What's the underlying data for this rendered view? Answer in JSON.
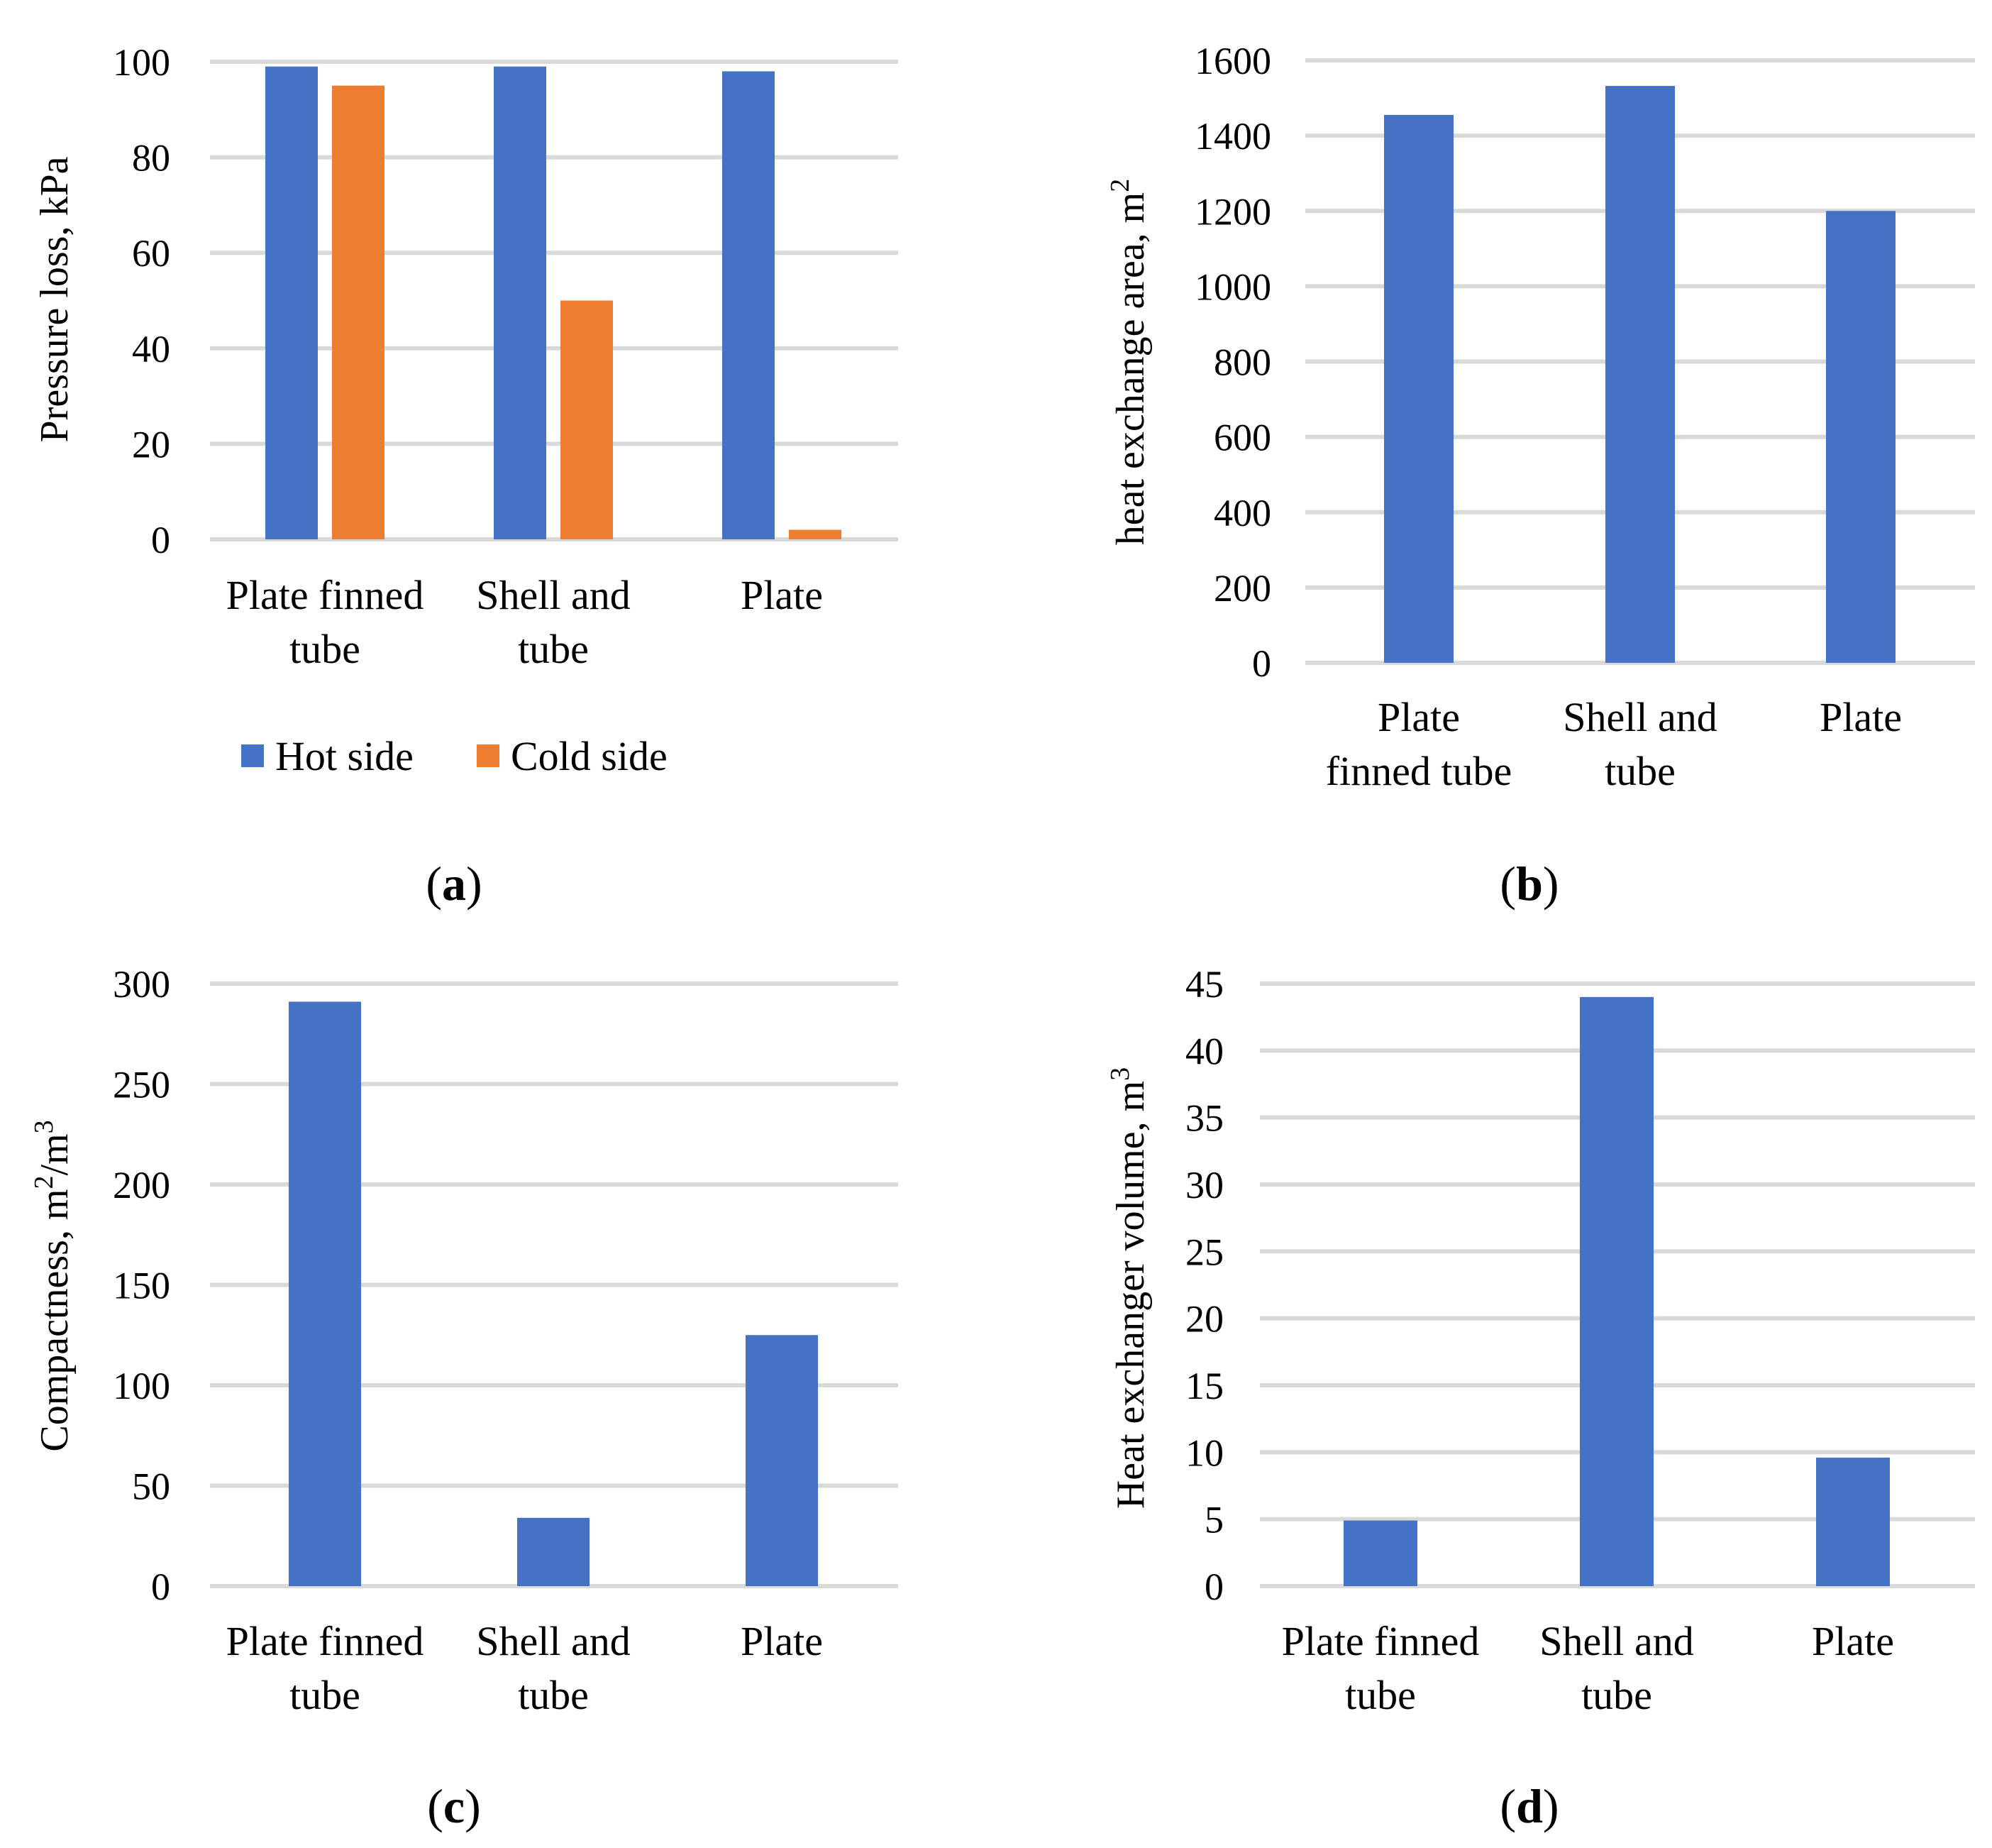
{
  "colors": {
    "hot": "#4472c4",
    "cold": "#ed7d31",
    "grid": "#d9d9d9"
  },
  "chart_data": [
    {
      "id": "a",
      "type": "bar",
      "panel_label": {
        "open": "(",
        "letter": "a",
        "close": ")"
      },
      "ylabel": "Pressure loss, kPa",
      "ylim": [
        0,
        100
      ],
      "yticks": [
        "0",
        "20",
        "40",
        "60",
        "80",
        "100"
      ],
      "categories": [
        [
          "Plate finned",
          "tube"
        ],
        [
          "Shell and",
          "tube"
        ],
        [
          "Plate"
        ]
      ],
      "series": [
        {
          "name": "Hot side",
          "color": "#4472c4",
          "values": [
            99,
            99,
            98
          ]
        },
        {
          "name": "Cold side",
          "color": "#ed7d31",
          "values": [
            95,
            50,
            2
          ]
        }
      ],
      "legend": "bottom"
    },
    {
      "id": "b",
      "type": "bar",
      "panel_label": {
        "open": "(",
        "letter": "b",
        "close": ")"
      },
      "ylabel": "heat exchange area, m",
      "ylabel_sup": "2",
      "ylim": [
        0,
        1600
      ],
      "yticks": [
        "0",
        "200",
        "400",
        "600",
        "800",
        "1000",
        "1200",
        "1400",
        "1600"
      ],
      "categories": [
        [
          "Plate",
          "finned tube"
        ],
        [
          "Shell and",
          "tube"
        ],
        [
          "Plate"
        ]
      ],
      "series": [
        {
          "name": "Heat exchange area",
          "color": "#4472c4",
          "values": [
            1455,
            1532,
            1200
          ]
        }
      ]
    },
    {
      "id": "c",
      "type": "bar",
      "panel_label": {
        "open": "(",
        "letter": "c",
        "close": ")"
      },
      "ylabel": "Compactness, m",
      "ylabel_sup": "2",
      "ylabel_mid": "/m",
      "ylabel_sup2": "3",
      "ylim": [
        0,
        300
      ],
      "yticks": [
        "0",
        "50",
        "100",
        "150",
        "200",
        "250",
        "300"
      ],
      "categories": [
        [
          "Plate finned",
          "tube"
        ],
        [
          "Shell and",
          "tube"
        ],
        [
          "Plate"
        ]
      ],
      "series": [
        {
          "name": "Compactness",
          "color": "#4472c4",
          "values": [
            291,
            34,
            125
          ]
        }
      ]
    },
    {
      "id": "d",
      "type": "bar",
      "panel_label": {
        "open": "(",
        "letter": "d",
        "close": ")"
      },
      "ylabel": "Heat exchanger volume, m",
      "ylabel_sup": "3",
      "ylim": [
        0,
        45
      ],
      "yticks": [
        "0",
        "5",
        "10",
        "15",
        "20",
        "25",
        "30",
        "35",
        "40",
        "45"
      ],
      "categories": [
        [
          "Plate finned",
          "tube"
        ],
        [
          "Shell and",
          "tube"
        ],
        [
          "Plate"
        ]
      ],
      "series": [
        {
          "name": "Heat exchanger volume",
          "color": "#4472c4",
          "values": [
            4.9,
            44,
            9.6
          ]
        }
      ]
    }
  ]
}
